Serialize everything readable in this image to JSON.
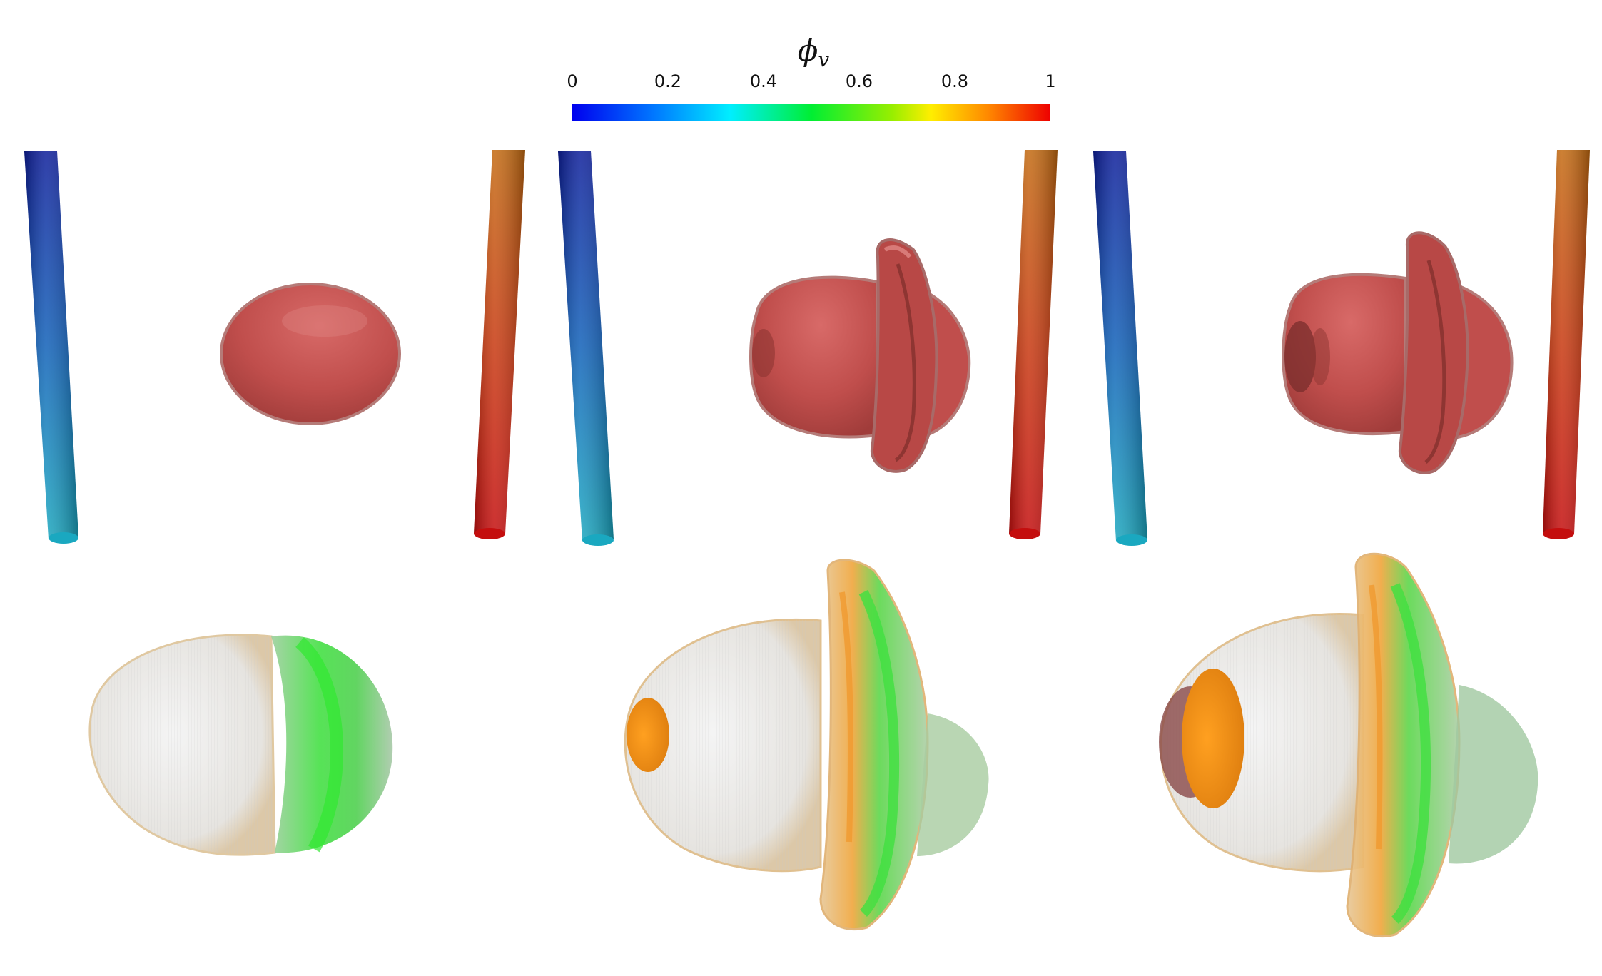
{
  "colorbar": {
    "symbol": "ϕ",
    "subscript": "v",
    "ticks": [
      "0",
      "0.2",
      "0.4",
      "0.6",
      "0.8",
      "1"
    ],
    "colors": [
      "#0000ff",
      "#0088ff",
      "#00ffff",
      "#00ff33",
      "#ffff00",
      "#ff8800",
      "#ff0000"
    ]
  },
  "panels": [
    {
      "stage": 1,
      "top_shape": "ellipsoid-droplet",
      "bottom_shape": "translucent-droplet"
    },
    {
      "stage": 2,
      "top_shape": "droplet-with-ring",
      "bottom_shape": "translucent-droplet-with-ring"
    },
    {
      "stage": 3,
      "top_shape": "droplet-with-ring",
      "bottom_shape": "translucent-droplet-with-ring"
    }
  ],
  "colors": {
    "droplet": "#c0504d",
    "droplet_dark": "#8e3532",
    "translucent_orange": "#f0a030",
    "translucent_green": "#40e040"
  }
}
